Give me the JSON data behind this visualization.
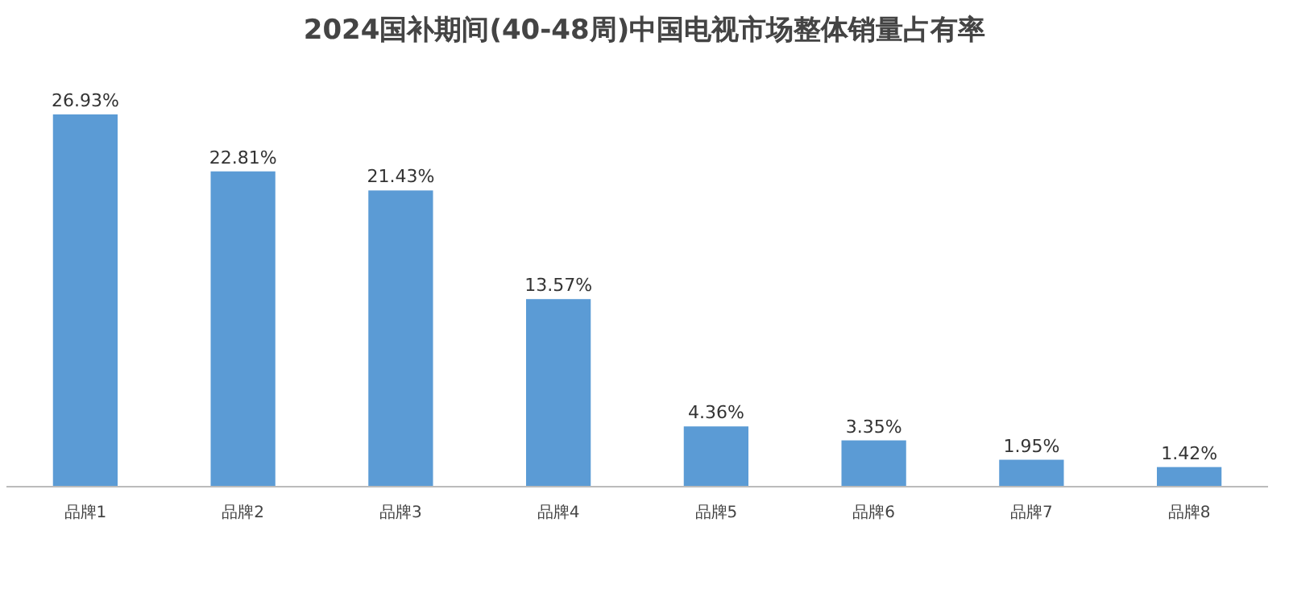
{
  "chart_data": {
    "type": "bar",
    "title": "2024国补期间(40-48周)中国电视市场整体销量占有率",
    "categories": [
      "品牌1",
      "品牌2",
      "品牌3",
      "品牌4",
      "品牌5",
      "品牌6",
      "品牌7",
      "品牌8"
    ],
    "values": [
      26.93,
      22.81,
      21.43,
      13.57,
      4.36,
      3.35,
      1.95,
      1.42
    ],
    "value_labels": [
      "26.93%",
      "22.81%",
      "21.43%",
      "13.57%",
      "4.36%",
      "3.35%",
      "1.95%",
      "1.42%"
    ],
    "color": "#5b9bd5",
    "grid": false,
    "legend": false
  }
}
